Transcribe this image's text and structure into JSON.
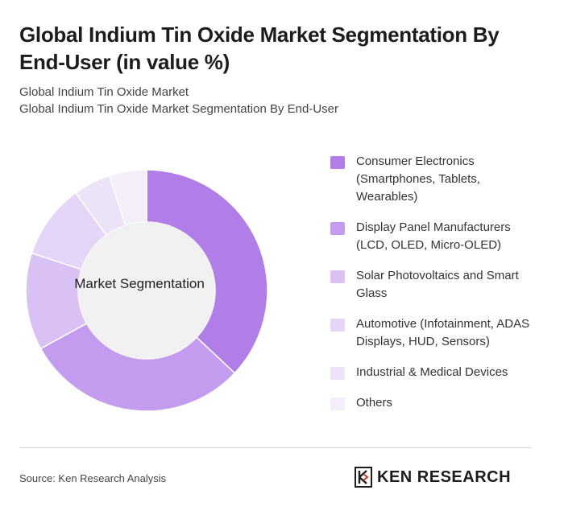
{
  "header": {
    "title": "Global Indium Tin Oxide Market Segmentation By End-User (in value %)",
    "breadcrumb1": "Global Indium Tin Oxide Market",
    "breadcrumb2": "Global Indium Tin Oxide Market Segmentation By End-User"
  },
  "chart_data": {
    "type": "pie",
    "center_label": "Market Segmentation",
    "categories": [
      "Consumer Electronics (Smartphones, Tablets, Wearables)",
      "Display Panel Manufacturers (LCD, OLED, Micro-OLED)",
      "Solar Photovoltaics and Smart Glass",
      "Automotive (Infotainment, ADAS Displays, HUD, Sensors)",
      "Industrial & Medical Devices",
      "Others"
    ],
    "values": [
      37,
      30,
      13,
      10,
      5,
      5
    ],
    "colors": [
      "#b07ee6",
      "#c39bef",
      "#d9c1f5",
      "#e5d6f7",
      "#ede3f9",
      "#f4eefb"
    ],
    "legend_position": "right"
  },
  "footer": {
    "source": "Source: Ken Research Analysis",
    "logo_text": "KEN RESEARCH"
  }
}
